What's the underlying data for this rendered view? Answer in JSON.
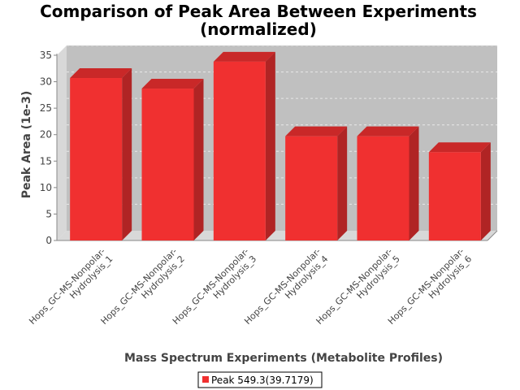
{
  "chart_data": {
    "type": "bar",
    "title_lines": [
      "Comparison of Peak Area Between Experiments",
      "(normalized)"
    ],
    "xlabel": "Mass Spectrum Experiments (Metabolite Profiles)",
    "ylabel": "Peak Area (1e-3)",
    "ylim": [
      0,
      35
    ],
    "yticks": [
      0,
      5,
      10,
      15,
      20,
      25,
      30,
      35
    ],
    "grid": true,
    "legend_position": "bottom",
    "categories": [
      [
        "Hops_GC-MS-Nonpolar-",
        "Hydrolysis_1"
      ],
      [
        "Hops_GC-MS-Nonpolar-",
        "Hydrolysis_2"
      ],
      [
        "Hops_GC-MS-Nonpolar-",
        "Hydrolysis_3"
      ],
      [
        "Hops_GC-MS-Nonpolar-",
        "Hydrolysis_4"
      ],
      [
        "Hops_GC-MS-Nonpolar-",
        "Hydrolysis_5"
      ],
      [
        "Hops_GC-MS-Nonpolar-",
        "Hydrolysis_6"
      ]
    ],
    "series": [
      {
        "name": "Peak 549.3(39.7179)",
        "values": [
          30.7,
          28.7,
          33.8,
          19.7,
          19.7,
          16.7
        ]
      }
    ],
    "colors": {
      "bar_front": "#f03030",
      "bar_top": "#c92828",
      "bar_side": "#b02424",
      "plot_back": "#c0c0c0",
      "plot_side": "#d8d8d8",
      "grid": "#e8e8e8"
    }
  }
}
